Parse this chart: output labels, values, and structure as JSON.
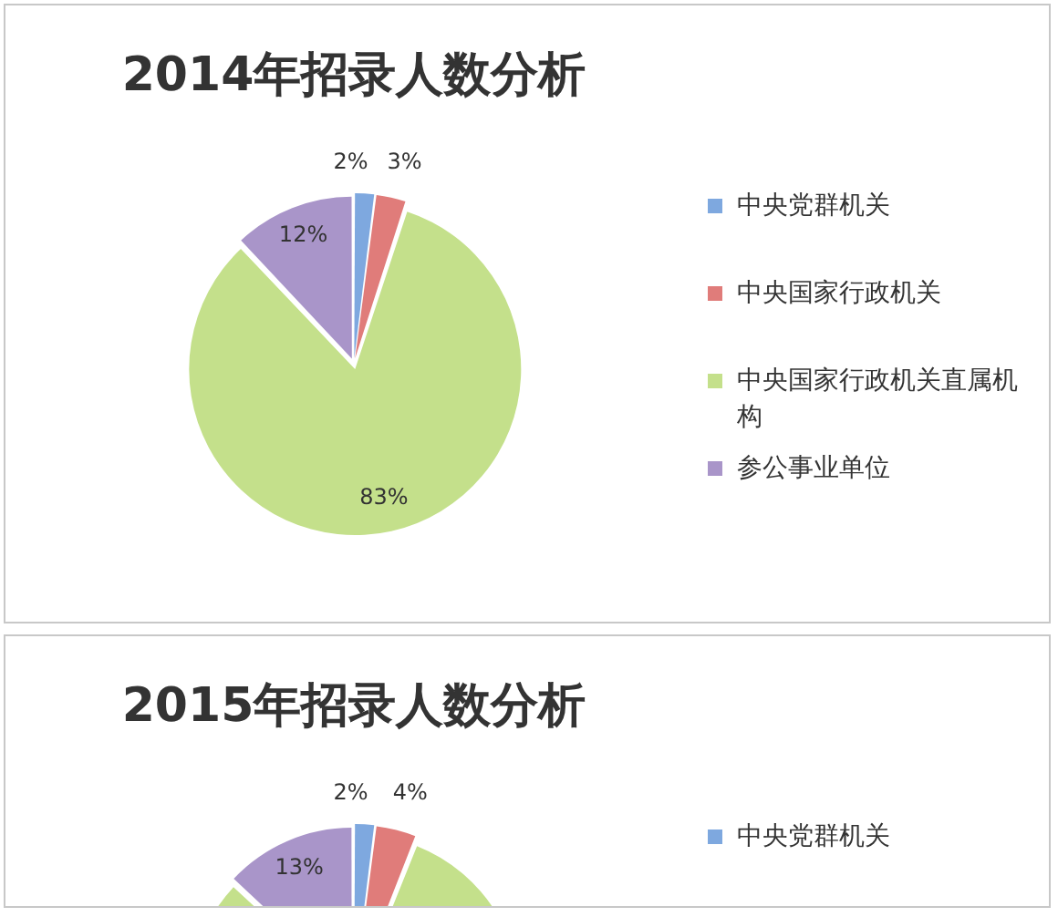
{
  "chart_data": [
    {
      "type": "pie",
      "title": "2014年招录人数分析",
      "categories": [
        "中央党群机关",
        "中央国家行政机关",
        "中央国家行政机关直属机构",
        "参公事业单位"
      ],
      "values": [
        2,
        3,
        83,
        12
      ],
      "colors": [
        "#7ea8df",
        "#e07c7a",
        "#c4e08b",
        "#a995c9"
      ],
      "legend": "right",
      "value_labels": [
        "2%",
        "3%",
        "83%",
        "12%"
      ]
    },
    {
      "type": "pie",
      "title": "2015年招录人数分析",
      "categories": [
        "中央党群机关",
        null,
        null,
        null
      ],
      "values": [
        2,
        4,
        81,
        13
      ],
      "colors": [
        "#7ea8df",
        "#e07c7a",
        "#c4e08b",
        "#a995c9"
      ],
      "legend": "right",
      "value_labels": [
        "2%",
        "4%",
        null,
        "13%"
      ]
    }
  ]
}
